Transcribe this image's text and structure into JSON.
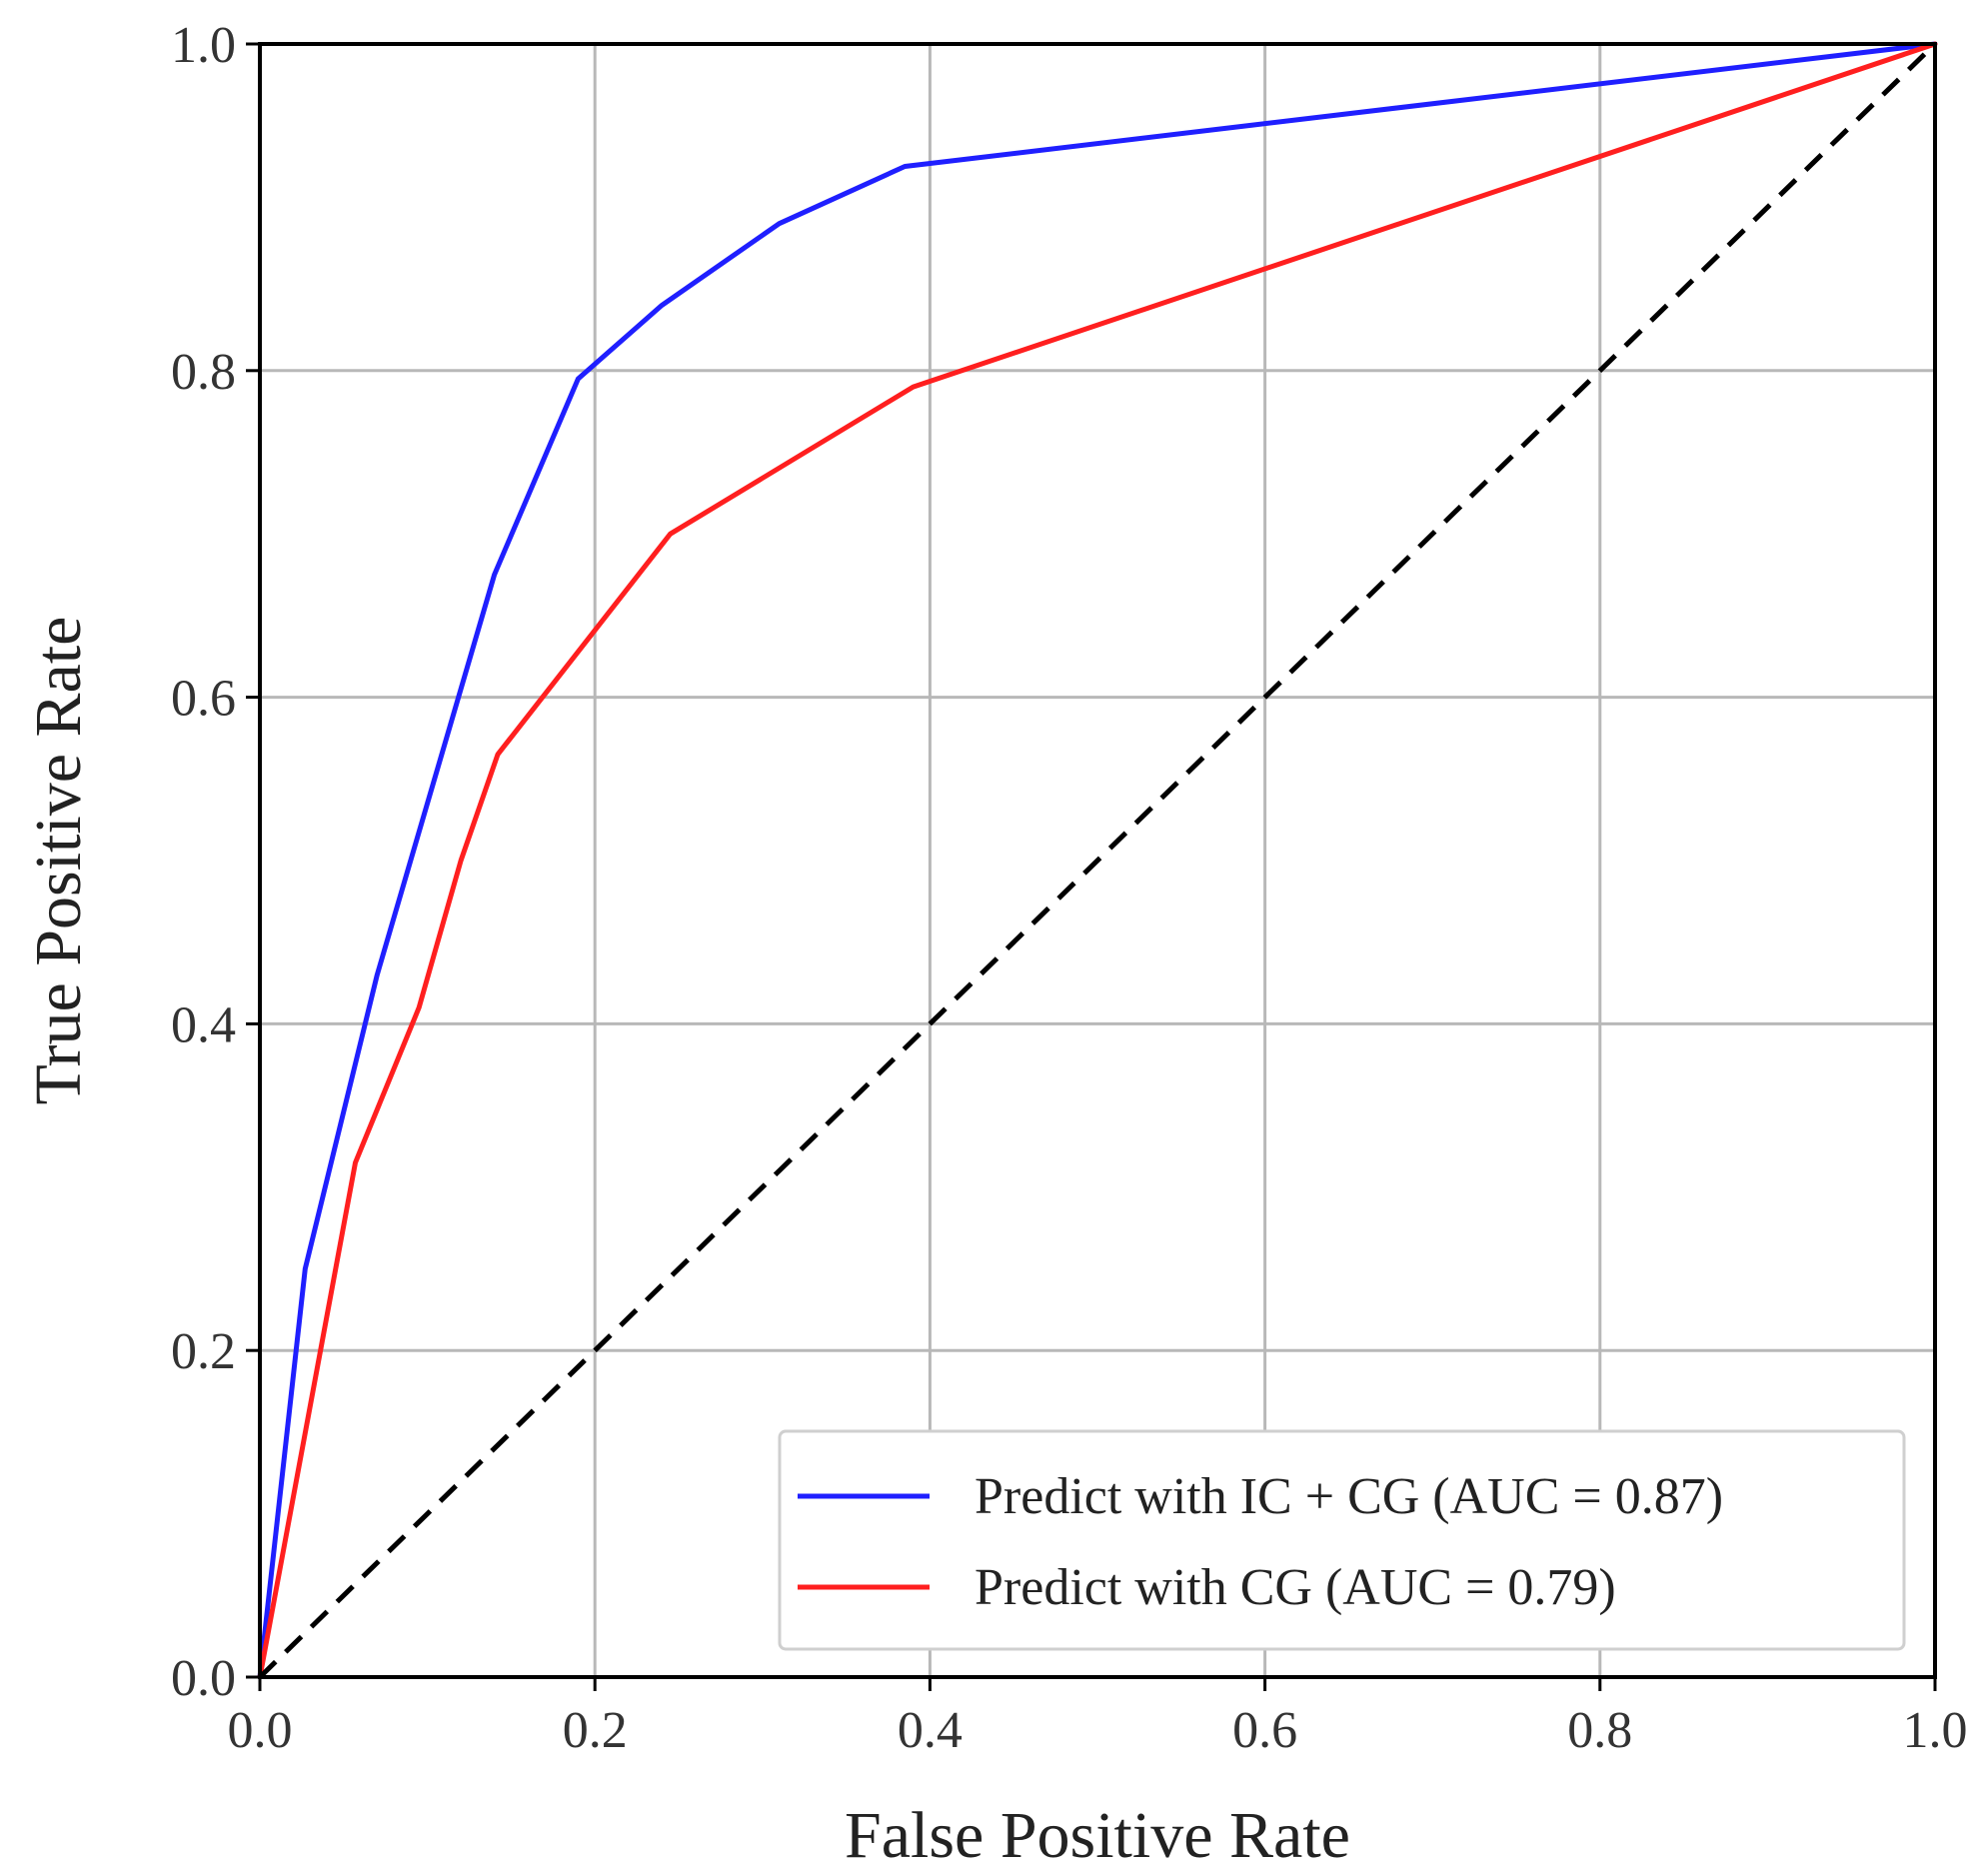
{
  "chart_data": {
    "type": "line",
    "title": "",
    "xlabel": "False Positive Rate",
    "ylabel": "True Positive Rate",
    "xlim": [
      0.0,
      1.0
    ],
    "ylim": [
      0.0,
      1.0
    ],
    "xticks": [
      "0.0",
      "0.2",
      "0.4",
      "0.6",
      "0.8",
      "1.0"
    ],
    "yticks": [
      "0.0",
      "0.2",
      "0.4",
      "0.6",
      "0.8",
      "1.0"
    ],
    "grid": true,
    "legend_position": "bottom-right",
    "series": [
      {
        "name": "Predict with IC + CG (AUC = 0.87)",
        "color": "#1f1fff",
        "style": "solid",
        "x": [
          0.0,
          0.027,
          0.07,
          0.14,
          0.19,
          0.24,
          0.31,
          0.385,
          1.0
        ],
        "y": [
          0.0,
          0.25,
          0.43,
          0.675,
          0.795,
          0.84,
          0.89,
          0.925,
          1.0
        ]
      },
      {
        "name": "Predict with CG (AUC = 0.79)",
        "color": "#ff1f1f",
        "style": "solid",
        "x": [
          0.0,
          0.057,
          0.095,
          0.12,
          0.142,
          0.245,
          0.39,
          1.0
        ],
        "y": [
          0.0,
          0.315,
          0.41,
          0.5,
          0.565,
          0.7,
          0.79,
          1.0
        ]
      },
      {
        "name": "",
        "color": "#000000",
        "style": "dashed",
        "x": [
          0.0,
          1.0
        ],
        "y": [
          0.0,
          1.0
        ]
      }
    ]
  }
}
